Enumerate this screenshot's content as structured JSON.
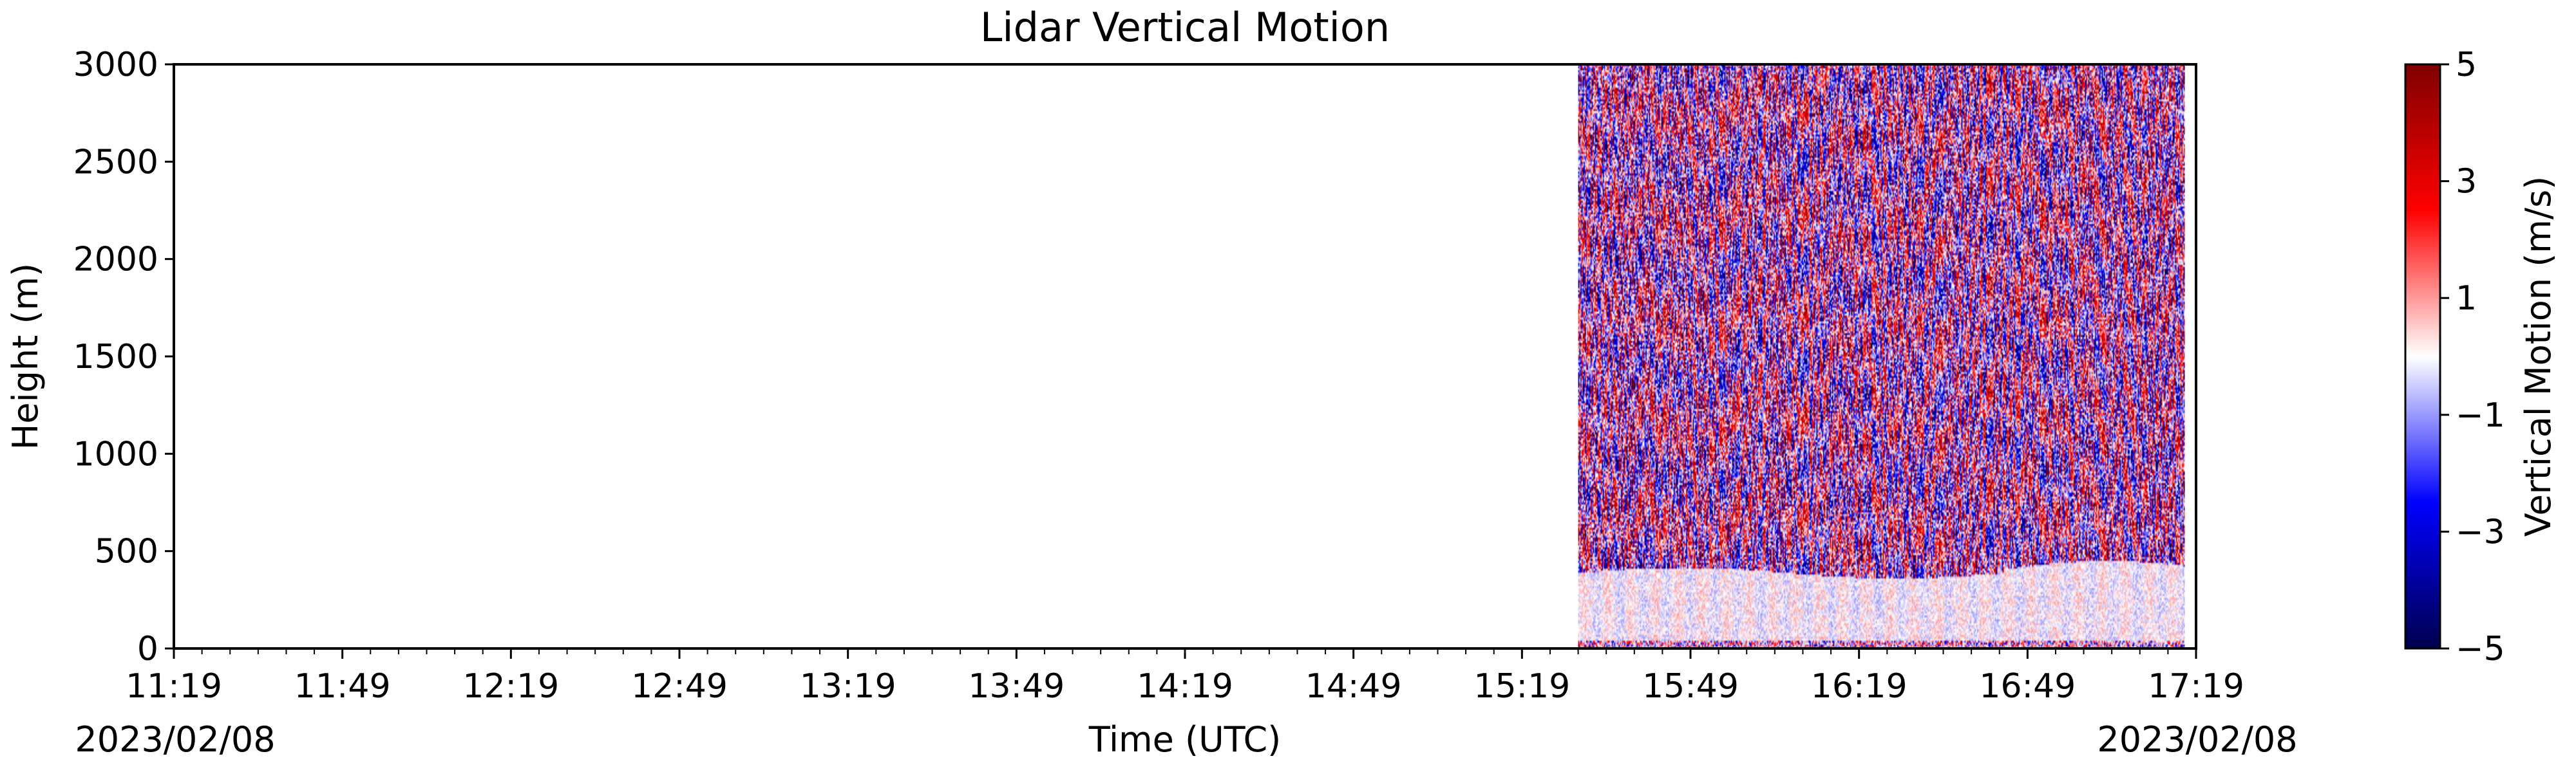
{
  "chart_data": {
    "type": "heatmap",
    "title": "Lidar Vertical Motion",
    "xlabel": "Time (UTC)",
    "ylabel": "Height (m)",
    "x_tick_labels": [
      "11:19",
      "11:49",
      "12:19",
      "12:49",
      "13:19",
      "13:49",
      "14:19",
      "14:49",
      "15:19",
      "15:49",
      "16:19",
      "16:49",
      "17:19"
    ],
    "x_date_left": "2023/02/08",
    "x_date_right": "2023/02/08",
    "xlim": [
      "11:19",
      "17:19"
    ],
    "y_ticks": [
      0,
      500,
      1000,
      1500,
      2000,
      2500,
      3000
    ],
    "ylim": [
      0,
      3000
    ],
    "data_time_range": [
      "15:29",
      "17:17"
    ],
    "data_height_range": [
      0,
      3000
    ],
    "colorbar": {
      "label": "Vertical Motion (m/s)",
      "ticks": [
        5,
        3,
        1,
        -1,
        -3,
        -5
      ],
      "range": [
        -5,
        5
      ],
      "colormap": "seismic",
      "colors": [
        "#00004d",
        "#0000ff",
        "#ffffff",
        "#ff0000",
        "#800000"
      ]
    },
    "features": {
      "near_surface_layer_top_m": [
        360,
        450
      ],
      "surface_band_height_m": 40
    }
  }
}
